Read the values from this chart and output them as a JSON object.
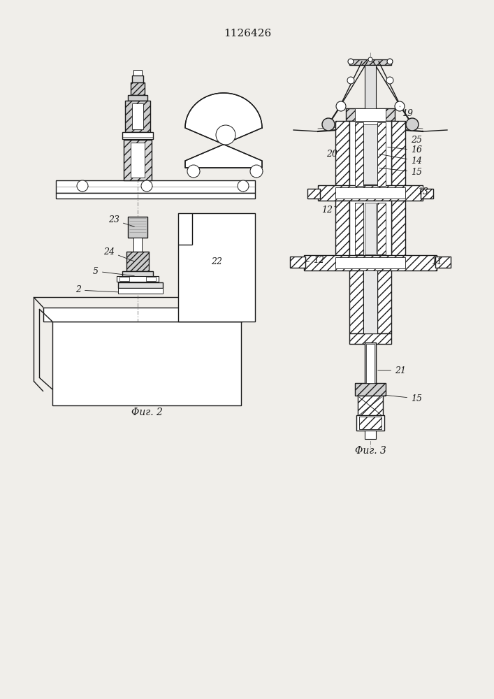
{
  "title": "1126426",
  "fig2_label": "Φиг. 2",
  "fig3_label": "Φиг. 3",
  "bg": "#f0eeea",
  "lc": "#1a1a1a",
  "title_fs": 11,
  "label_fs": 10,
  "annot_fs": 9
}
